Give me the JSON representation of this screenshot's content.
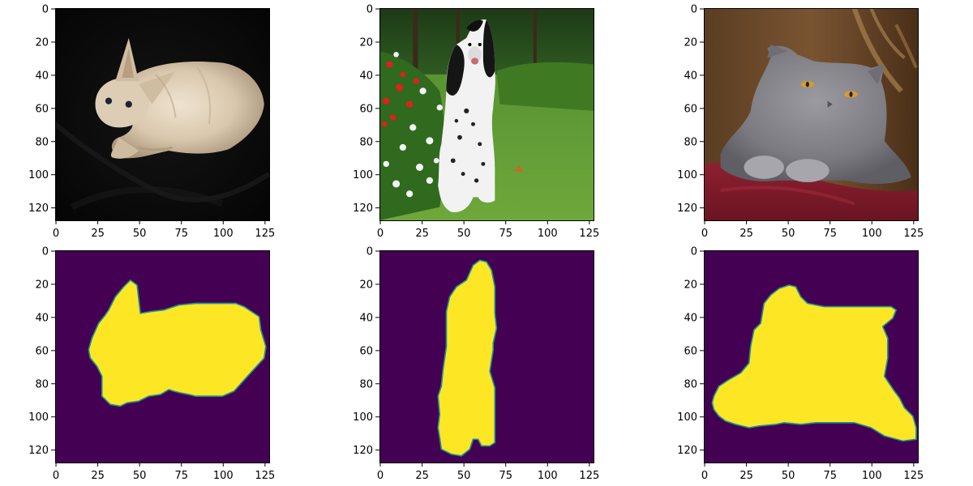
{
  "chart_data": {
    "type": "image-grid",
    "description_rows": [
      "input images",
      "segmentation masks"
    ],
    "colors": {
      "mask_background": "#440154",
      "mask_foreground": "#fde725",
      "mask_edge": "#21918c"
    },
    "panels": [
      {
        "name": "sphynx-cat-photo",
        "kind": "photo",
        "subject": "sphynx cat on black background",
        "xlim": [
          0,
          127
        ],
        "ylim": [
          127,
          0
        ],
        "xticks": [
          "0",
          "25",
          "50",
          "75",
          "100",
          "125"
        ],
        "yticks": [
          "0",
          "20",
          "40",
          "60",
          "80",
          "100",
          "120"
        ]
      },
      {
        "name": "spaniel-dog-photo",
        "kind": "photo",
        "subject": "black and white spaniel on grass",
        "xlim": [
          0,
          127
        ],
        "ylim": [
          127,
          0
        ],
        "xticks": [
          "0",
          "25",
          "50",
          "75",
          "100",
          "125"
        ],
        "yticks": [
          "0",
          "20",
          "40",
          "60",
          "80",
          "100",
          "120"
        ]
      },
      {
        "name": "grey-cat-photo",
        "kind": "photo",
        "subject": "grey british shorthair cat on red cushion",
        "xlim": [
          0,
          127
        ],
        "ylim": [
          127,
          0
        ],
        "xticks": [
          "0",
          "25",
          "50",
          "75",
          "100",
          "125"
        ],
        "yticks": [
          "0",
          "20",
          "40",
          "60",
          "80",
          "100",
          "120"
        ]
      },
      {
        "name": "sphynx-cat-mask",
        "kind": "mask",
        "xlim": [
          0,
          127
        ],
        "ylim": [
          127,
          0
        ],
        "xticks": [
          "0",
          "25",
          "50",
          "75",
          "100",
          "125"
        ],
        "yticks": [
          "0",
          "20",
          "40",
          "60",
          "80",
          "100",
          "120"
        ],
        "outline": [
          [
            20,
            60
          ],
          [
            22,
            53
          ],
          [
            26,
            44
          ],
          [
            30,
            39
          ],
          [
            32,
            36
          ],
          [
            33,
            34
          ],
          [
            36,
            28
          ],
          [
            41,
            22
          ],
          [
            45,
            18
          ],
          [
            49,
            21
          ],
          [
            51,
            38
          ],
          [
            57,
            37
          ],
          [
            65,
            36
          ],
          [
            74,
            33
          ],
          [
            84,
            32
          ],
          [
            108,
            32
          ],
          [
            113,
            34
          ],
          [
            122,
            40
          ],
          [
            123,
            48
          ],
          [
            126,
            58
          ],
          [
            125,
            65
          ],
          [
            115,
            76
          ],
          [
            107,
            85
          ],
          [
            100,
            88
          ],
          [
            94,
            88
          ],
          [
            84,
            88
          ],
          [
            80,
            87
          ],
          [
            75,
            86
          ],
          [
            71,
            85
          ],
          [
            68,
            84
          ],
          [
            63,
            87
          ],
          [
            56,
            88
          ],
          [
            50,
            91
          ],
          [
            43,
            92
          ],
          [
            39,
            94
          ],
          [
            33,
            93
          ],
          [
            28,
            88
          ],
          [
            28,
            76
          ],
          [
            25,
            70
          ],
          [
            21,
            65
          ]
        ]
      },
      {
        "name": "spaniel-dog-mask",
        "kind": "mask",
        "xlim": [
          0,
          127
        ],
        "ylim": [
          127,
          0
        ],
        "xticks": [
          "0",
          "25",
          "50",
          "75",
          "100",
          "125"
        ],
        "yticks": [
          "0",
          "20",
          "40",
          "60",
          "80",
          "100",
          "120"
        ],
        "outline": [
          [
            52,
            18
          ],
          [
            56,
            9
          ],
          [
            60,
            6
          ],
          [
            64,
            7
          ],
          [
            67,
            12
          ],
          [
            69,
            22
          ],
          [
            69,
            38
          ],
          [
            70,
            47
          ],
          [
            68,
            56
          ],
          [
            68,
            60
          ],
          [
            66,
            73
          ],
          [
            69,
            83
          ],
          [
            69,
            97
          ],
          [
            69,
            110
          ],
          [
            69,
            116
          ],
          [
            66,
            118
          ],
          [
            61,
            118
          ],
          [
            59,
            114
          ],
          [
            56,
            114
          ],
          [
            54,
            120
          ],
          [
            49,
            124
          ],
          [
            43,
            123
          ],
          [
            37,
            120
          ],
          [
            36,
            113
          ],
          [
            35,
            107
          ],
          [
            36,
            99
          ],
          [
            35,
            88
          ],
          [
            37,
            82
          ],
          [
            38,
            72
          ],
          [
            40,
            58
          ],
          [
            40,
            46
          ],
          [
            40,
            37
          ],
          [
            42,
            28
          ],
          [
            46,
            22
          ]
        ]
      },
      {
        "name": "grey-cat-mask",
        "kind": "mask",
        "xlim": [
          0,
          127
        ],
        "ylim": [
          127,
          0
        ],
        "xticks": [
          "0",
          "25",
          "50",
          "75",
          "100",
          "125"
        ],
        "yticks": [
          "0",
          "20",
          "40",
          "60",
          "80",
          "100",
          "120"
        ],
        "outline": [
          [
            6,
            88
          ],
          [
            9,
            82
          ],
          [
            15,
            78
          ],
          [
            22,
            74
          ],
          [
            27,
            68
          ],
          [
            28,
            58
          ],
          [
            30,
            48
          ],
          [
            34,
            44
          ],
          [
            36,
            32
          ],
          [
            40,
            27
          ],
          [
            45,
            23
          ],
          [
            51,
            21
          ],
          [
            55,
            22
          ],
          [
            58,
            28
          ],
          [
            62,
            32
          ],
          [
            72,
            34
          ],
          [
            85,
            34
          ],
          [
            97,
            34
          ],
          [
            112,
            34
          ],
          [
            115,
            36
          ],
          [
            113,
            41
          ],
          [
            107,
            46
          ],
          [
            110,
            53
          ],
          [
            110,
            65
          ],
          [
            108,
            76
          ],
          [
            114,
            85
          ],
          [
            117,
            89
          ],
          [
            120,
            95
          ],
          [
            125,
            100
          ],
          [
            127,
            107
          ],
          [
            127,
            114
          ],
          [
            119,
            115
          ],
          [
            108,
            112
          ],
          [
            100,
            107
          ],
          [
            90,
            104
          ],
          [
            78,
            104
          ],
          [
            67,
            104
          ],
          [
            58,
            105
          ],
          [
            48,
            104
          ],
          [
            43,
            105
          ],
          [
            33,
            106
          ],
          [
            27,
            107
          ],
          [
            19,
            105
          ],
          [
            13,
            103
          ],
          [
            9,
            100
          ],
          [
            6,
            96
          ],
          [
            5,
            92
          ]
        ]
      }
    ]
  }
}
